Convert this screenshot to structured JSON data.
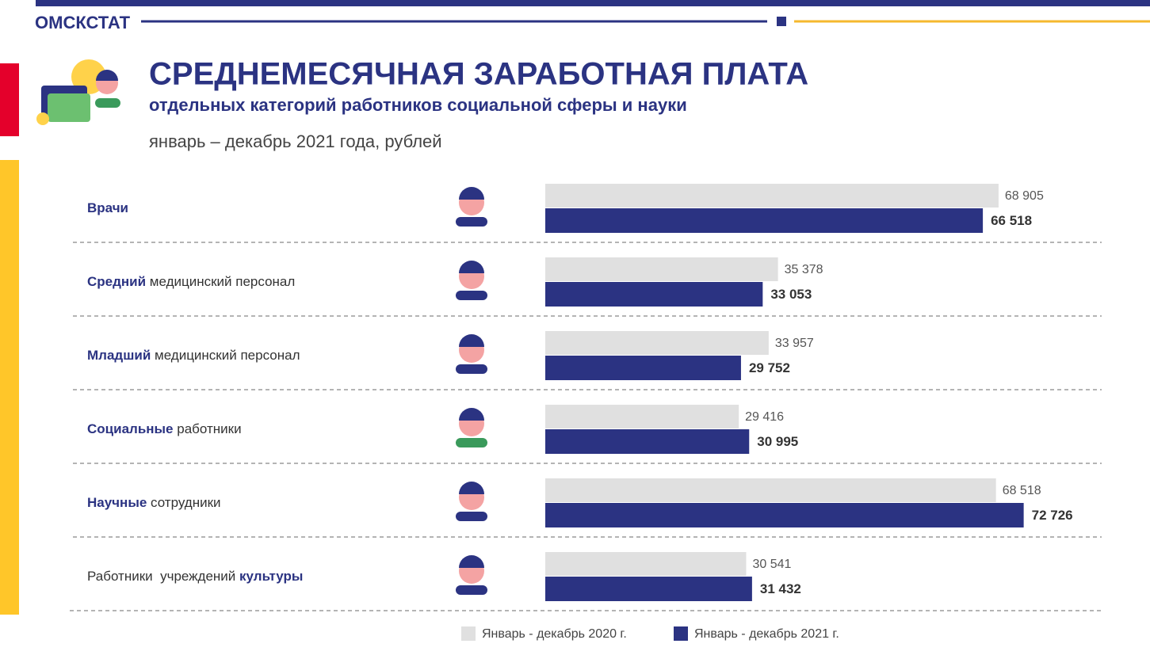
{
  "brand": "ОМСКСТАТ",
  "chart_data": {
    "type": "bar",
    "orientation": "horizontal",
    "title": "СРЕДНЕМЕСЯЧНАЯ ЗАРАБОТНАЯ ПЛАТА",
    "subtitle": "отдельных категорий работников социальной сферы и науки",
    "caption": "январь – декабрь 2021 года, рублей",
    "categories": [
      [
        {
          "text": "Врачи",
          "bold": true
        }
      ],
      [
        {
          "text": "Средний",
          "bold": true
        },
        {
          "text": " медицинский персонал",
          "bold": false
        }
      ],
      [
        {
          "text": "Младший",
          "bold": true
        },
        {
          "text": " медицинский персонал",
          "bold": false
        }
      ],
      [
        {
          "text": "Социальные",
          "bold": true
        },
        {
          "text": " работники",
          "bold": false
        }
      ],
      [
        {
          "text": "Научные",
          "bold": true
        },
        {
          "text": " сотрудники",
          "bold": false
        }
      ],
      [
        {
          "text": "Работники  учреждений ",
          "bold": false
        },
        {
          "text": "культуры",
          "bold": true
        }
      ]
    ],
    "series": [
      {
        "name": "Январь - декабрь 2020 г.",
        "color": "#e0e0e0",
        "values": [
          68905,
          35378,
          33957,
          29416,
          68518,
          30541
        ],
        "value_labels": [
          "68 905",
          "35 378",
          "33 957",
          "29 416",
          "68 518",
          "30 541"
        ]
      },
      {
        "name": "Январь - декабрь 2021 г.",
        "color": "#2b3382",
        "values": [
          66518,
          33053,
          29752,
          30995,
          72726,
          31432
        ],
        "value_labels": [
          "66 518",
          "33 053",
          "29 752",
          "30 995",
          "72 726",
          "31 432"
        ]
      }
    ],
    "legend": "bottom"
  }
}
